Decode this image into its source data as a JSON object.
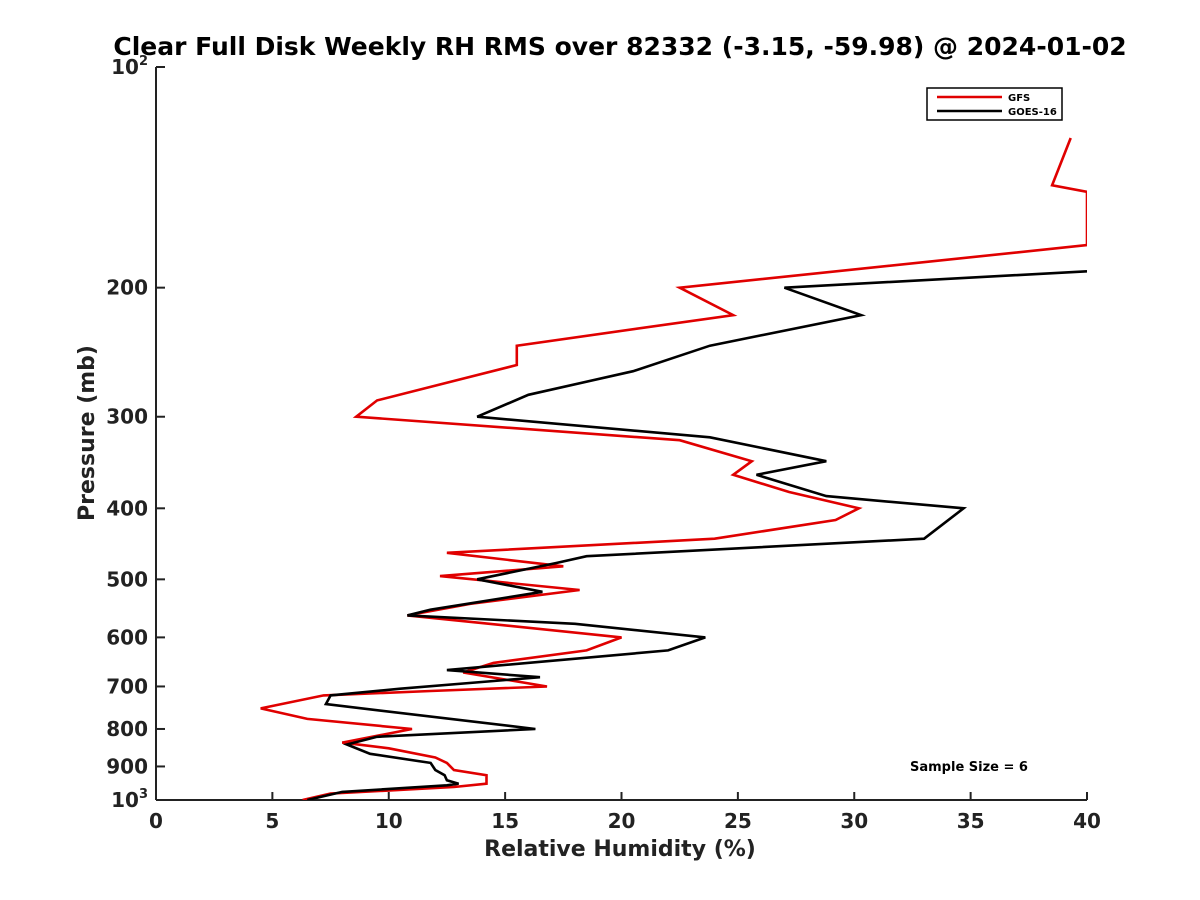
{
  "chart_data": {
    "type": "line",
    "title": "Clear Full Disk Weekly RH RMS over 82332 (-3.15, -59.98) @ 2024-01-02",
    "xlabel": "Relative Humidity (%)",
    "ylabel": "Pressure (mb)",
    "xlim": [
      0,
      40
    ],
    "ylim": [
      100,
      1000
    ],
    "y_scale": "log",
    "y_reversed": true,
    "x_ticks": [
      0,
      5,
      10,
      15,
      20,
      25,
      30,
      35,
      40
    ],
    "y_ticks": [
      {
        "value": 100,
        "base": "10",
        "exp": "2"
      },
      {
        "value": 200,
        "label": "200"
      },
      {
        "value": 300,
        "label": "300"
      },
      {
        "value": 400,
        "label": "400"
      },
      {
        "value": 500,
        "label": "500"
      },
      {
        "value": 600,
        "label": "600"
      },
      {
        "value": 700,
        "label": "700"
      },
      {
        "value": 800,
        "label": "800"
      },
      {
        "value": 900,
        "label": "900"
      },
      {
        "value": 1000,
        "base": "10",
        "exp": "3"
      }
    ],
    "legend_position": "top-right",
    "annotation": "Sample Size = 6",
    "series": [
      {
        "name": "GFS",
        "color": "#e00000",
        "points": [
          [
            39.3,
            125
          ],
          [
            38.5,
            145
          ],
          [
            40.0,
            148
          ],
          [
            40.0,
            175
          ],
          [
            22.5,
            200
          ],
          [
            24.8,
            218
          ],
          [
            15.5,
            240
          ],
          [
            15.5,
            255
          ],
          [
            9.5,
            285
          ],
          [
            8.6,
            300
          ],
          [
            22.5,
            323
          ],
          [
            25.6,
            345
          ],
          [
            24.8,
            360
          ],
          [
            27.2,
            380
          ],
          [
            30.2,
            400
          ],
          [
            29.2,
            415
          ],
          [
            24.0,
            440
          ],
          [
            12.5,
            460
          ],
          [
            17.5,
            480
          ],
          [
            12.2,
            495
          ],
          [
            18.2,
            517
          ],
          [
            13.5,
            540
          ],
          [
            10.8,
            560
          ],
          [
            20.0,
            600
          ],
          [
            18.5,
            625
          ],
          [
            14.5,
            650
          ],
          [
            13.2,
            670
          ],
          [
            16.8,
            700
          ],
          [
            11.8,
            710
          ],
          [
            7.2,
            720
          ],
          [
            4.5,
            750
          ],
          [
            6.5,
            775
          ],
          [
            11.0,
            800
          ],
          [
            8.0,
            835
          ],
          [
            10.0,
            850
          ],
          [
            12.0,
            875
          ],
          [
            12.5,
            890
          ],
          [
            12.8,
            910
          ],
          [
            14.2,
            925
          ],
          [
            14.2,
            950
          ],
          [
            12.8,
            960
          ],
          [
            7.5,
            980
          ],
          [
            6.3,
            1000
          ]
        ]
      },
      {
        "name": "GOES-16",
        "color": "#000000",
        "points": [
          [
            40.0,
            190
          ],
          [
            27.0,
            200
          ],
          [
            30.3,
            218
          ],
          [
            23.8,
            240
          ],
          [
            20.5,
            260
          ],
          [
            16.0,
            280
          ],
          [
            13.8,
            300
          ],
          [
            23.8,
            320
          ],
          [
            28.8,
            345
          ],
          [
            25.8,
            360
          ],
          [
            28.8,
            385
          ],
          [
            34.7,
            400
          ],
          [
            33.0,
            440
          ],
          [
            18.5,
            465
          ],
          [
            17.2,
            475
          ],
          [
            13.8,
            500
          ],
          [
            16.6,
            520
          ],
          [
            11.8,
            550
          ],
          [
            10.8,
            560
          ],
          [
            18.0,
            575
          ],
          [
            23.6,
            600
          ],
          [
            22.0,
            625
          ],
          [
            12.5,
            665
          ],
          [
            16.5,
            680
          ],
          [
            10.5,
            705
          ],
          [
            7.5,
            720
          ],
          [
            7.3,
            740
          ],
          [
            16.3,
            800
          ],
          [
            9.5,
            820
          ],
          [
            8.2,
            840
          ],
          [
            9.2,
            865
          ],
          [
            11.8,
            890
          ],
          [
            12.0,
            910
          ],
          [
            12.4,
            925
          ],
          [
            12.5,
            940
          ],
          [
            13.0,
            950
          ],
          [
            12.5,
            955
          ],
          [
            8.0,
            975
          ],
          [
            6.5,
            1000
          ]
        ]
      }
    ]
  }
}
